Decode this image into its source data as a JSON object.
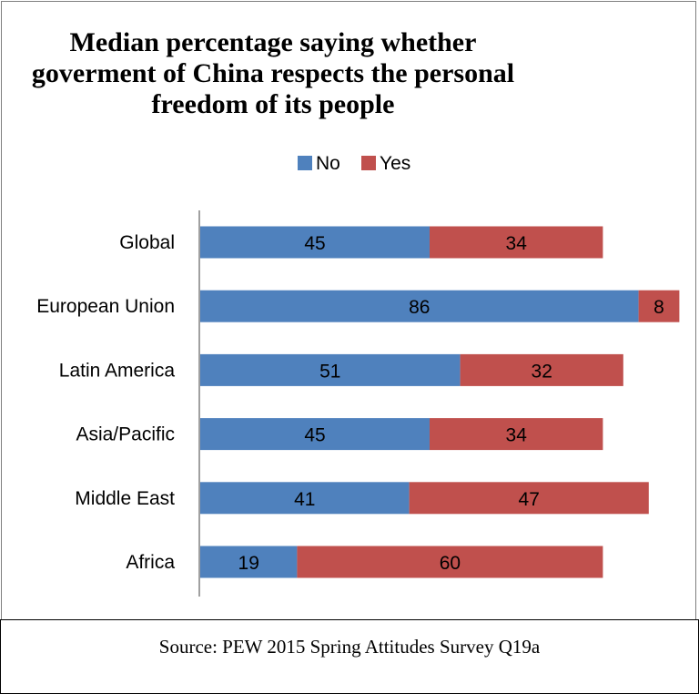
{
  "title_lines": [
    "Median percentage saying whether",
    "goverment of China respects the personal",
    "freedom of its people"
  ],
  "source": "Source: PEW 2015 Spring Attitudes Survey Q19a",
  "colors": {
    "No": "#4f81bd",
    "Yes": "#c0504d"
  },
  "chart_data": {
    "type": "bar",
    "orientation": "horizontal",
    "stacked": true,
    "title": "Median percentage saying whether goverment of China respects the personal freedom of its people",
    "categories": [
      "Global",
      "European Union",
      "Latin America",
      "Asia/Pacific",
      "Middle East",
      "Africa"
    ],
    "series": [
      {
        "name": "No",
        "values": [
          45,
          86,
          51,
          45,
          41,
          19
        ]
      },
      {
        "name": "Yes",
        "values": [
          34,
          8,
          32,
          34,
          47,
          60
        ]
      }
    ],
    "legend": "top-center",
    "grid": false,
    "data_labels": true
  }
}
